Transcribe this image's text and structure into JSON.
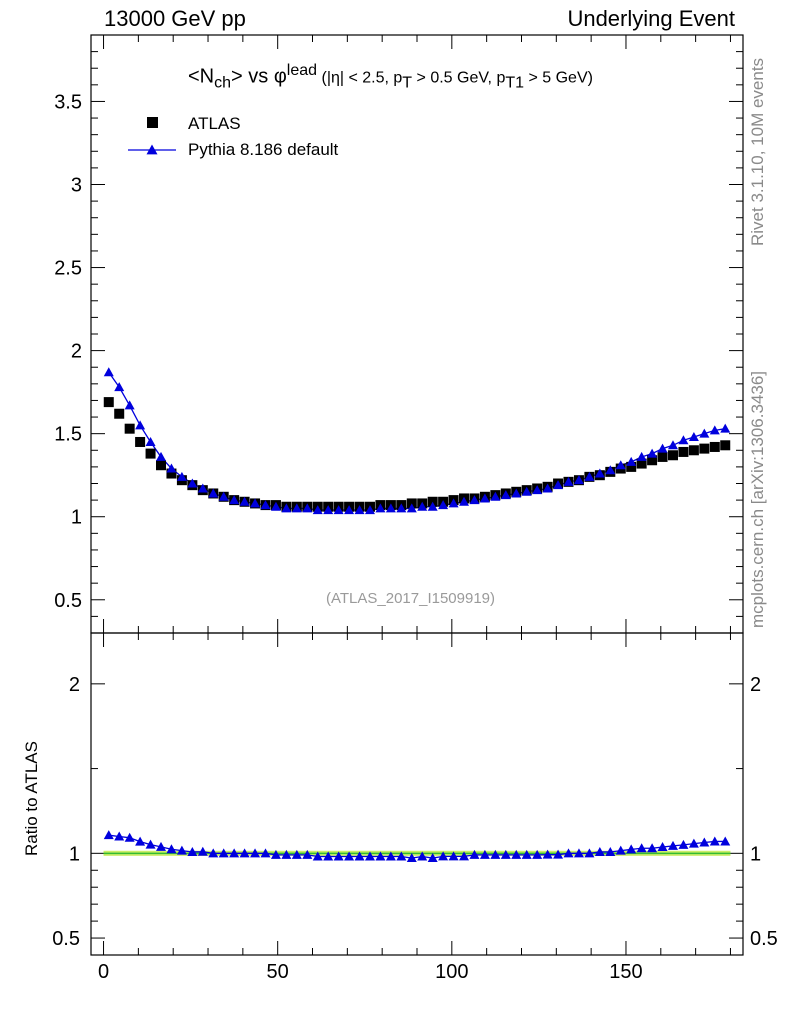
{
  "header": {
    "left": "13000 GeV pp",
    "right": "Underlying Event"
  },
  "side_text": {
    "rivet": "Rivet 3.1.10,  10M events",
    "mcplots": "mcplots.cern.ch [arXiv:1306.3436]"
  },
  "analysis_id": "(ATLAS_2017_I1509919)",
  "title": {
    "main": "<N",
    "sub": "ch",
    "mid": "> vs φ",
    "sup": "lead",
    "cuts_a": " (|η| < 2.5, p",
    "cuts_a_sub": "T",
    "cuts_b": " > 0.5 GeV, p",
    "cuts_b_sub": "T1",
    "cuts_c": " > 5 GeV)"
  },
  "legend": {
    "atlas": "ATLAS",
    "pythia": "Pythia 8.186 default"
  },
  "ratio_ylabel": "Ratio to ATLAS",
  "colors": {
    "data": "#000000",
    "mc": "#0000dd",
    "band": "#ccee66",
    "refline": "#33bb33"
  },
  "chart_data": [
    {
      "type": "scatter",
      "panel": "main",
      "xlim": [
        -3.6,
        183.6
      ],
      "ylim": [
        0.3,
        3.9
      ],
      "yticks": [
        0.5,
        1,
        1.5,
        2,
        2.5,
        3,
        3.5
      ],
      "ytick_labels": [
        "0.5",
        "1",
        "1.5",
        "2",
        "2.5",
        "3",
        "3.5"
      ],
      "x": [
        1.5,
        4.5,
        7.5,
        10.5,
        13.5,
        16.5,
        19.5,
        22.5,
        25.5,
        28.5,
        31.5,
        34.5,
        37.5,
        40.5,
        43.5,
        46.5,
        49.5,
        52.5,
        55.5,
        58.5,
        61.5,
        64.5,
        67.5,
        70.5,
        73.5,
        76.5,
        79.5,
        82.5,
        85.5,
        88.5,
        91.5,
        94.5,
        97.5,
        100.5,
        103.5,
        106.5,
        109.5,
        112.5,
        115.5,
        118.5,
        121.5,
        124.5,
        127.5,
        130.5,
        133.5,
        136.5,
        139.5,
        142.5,
        145.5,
        148.5,
        151.5,
        154.5,
        157.5,
        160.5,
        163.5,
        166.5,
        169.5,
        172.5,
        175.5,
        178.5
      ],
      "series": [
        {
          "name": "ATLAS",
          "marker": "square",
          "values": [
            1.69,
            1.62,
            1.53,
            1.45,
            1.38,
            1.31,
            1.26,
            1.22,
            1.19,
            1.16,
            1.14,
            1.12,
            1.1,
            1.09,
            1.08,
            1.07,
            1.07,
            1.06,
            1.06,
            1.06,
            1.06,
            1.06,
            1.06,
            1.06,
            1.06,
            1.06,
            1.07,
            1.07,
            1.07,
            1.08,
            1.08,
            1.09,
            1.09,
            1.1,
            1.11,
            1.11,
            1.12,
            1.13,
            1.14,
            1.15,
            1.16,
            1.17,
            1.18,
            1.2,
            1.21,
            1.22,
            1.24,
            1.25,
            1.27,
            1.29,
            1.3,
            1.32,
            1.34,
            1.36,
            1.37,
            1.39,
            1.4,
            1.41,
            1.42,
            1.43
          ]
        },
        {
          "name": "Pythia 8.186 default",
          "marker": "triangle",
          "values": [
            1.87,
            1.78,
            1.67,
            1.55,
            1.45,
            1.36,
            1.29,
            1.24,
            1.2,
            1.17,
            1.14,
            1.12,
            1.1,
            1.09,
            1.08,
            1.07,
            1.06,
            1.05,
            1.05,
            1.05,
            1.04,
            1.04,
            1.04,
            1.04,
            1.04,
            1.04,
            1.05,
            1.05,
            1.05,
            1.05,
            1.06,
            1.06,
            1.07,
            1.08,
            1.09,
            1.1,
            1.11,
            1.12,
            1.13,
            1.14,
            1.15,
            1.16,
            1.17,
            1.19,
            1.21,
            1.22,
            1.24,
            1.26,
            1.28,
            1.31,
            1.33,
            1.36,
            1.38,
            1.41,
            1.43,
            1.46,
            1.48,
            1.5,
            1.52,
            1.53
          ]
        }
      ]
    },
    {
      "type": "scatter",
      "panel": "ratio",
      "ylabel": "Ratio to ATLAS",
      "xlim": [
        -3.6,
        183.6
      ],
      "ylim": [
        0.4,
        2.3
      ],
      "xticks": [
        0,
        50,
        100,
        150
      ],
      "xtick_labels": [
        "0",
        "50",
        "100",
        "150"
      ],
      "yticks": [
        0.5,
        1,
        2
      ],
      "ytick_labels": [
        "0.5",
        "1",
        "2"
      ],
      "reference": 1,
      "band": [
        0.985,
        1.015
      ],
      "series": [
        {
          "name": "Pythia 8.186 default",
          "marker": "triangle",
          "values": [
            1.107,
            1.099,
            1.092,
            1.069,
            1.051,
            1.038,
            1.024,
            1.016,
            1.008,
            1.009,
            1.0,
            1.0,
            1.0,
            1.0,
            1.0,
            1.0,
            0.991,
            0.991,
            0.991,
            0.991,
            0.981,
            0.981,
            0.981,
            0.981,
            0.981,
            0.981,
            0.981,
            0.981,
            0.981,
            0.972,
            0.981,
            0.972,
            0.982,
            0.982,
            0.982,
            0.991,
            0.991,
            0.991,
            0.991,
            0.991,
            0.991,
            0.991,
            0.992,
            0.992,
            1.0,
            1.0,
            1.0,
            1.008,
            1.008,
            1.016,
            1.023,
            1.03,
            1.03,
            1.037,
            1.044,
            1.05,
            1.057,
            1.064,
            1.07,
            1.07
          ]
        }
      ]
    }
  ]
}
